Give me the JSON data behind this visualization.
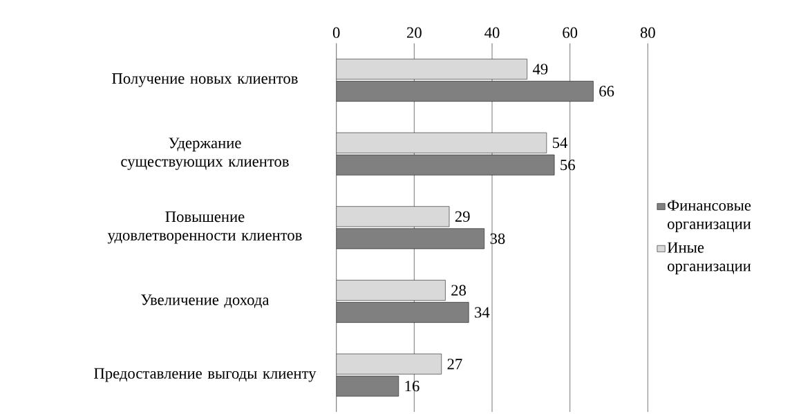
{
  "chart_data": {
    "type": "bar",
    "orientation": "horizontal",
    "categories": [
      "Получение новых клиентов",
      "Удержание существующих клиентов",
      "Повышение удовлетворенности клиентов",
      "Увеличение дохода",
      "Предоставление выгоды клиенту"
    ],
    "series": [
      {
        "name": "Финансовые организации",
        "color": "#808080",
        "values": [
          66,
          56,
          38,
          34,
          16
        ]
      },
      {
        "name": "Иные организации",
        "color": "#d9d9d9",
        "values": [
          49,
          54,
          29,
          28,
          27
        ]
      }
    ],
    "xlim": [
      0,
      80
    ],
    "xticks": [
      0,
      20,
      40,
      60,
      80
    ],
    "grid": "x",
    "legend": "right",
    "data_labels": true
  }
}
